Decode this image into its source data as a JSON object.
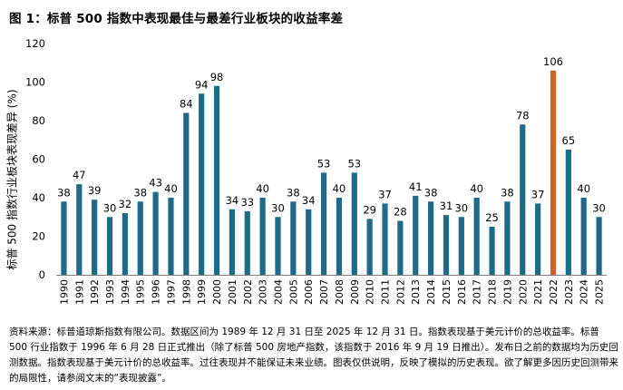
{
  "figure": {
    "title": "图 1：标普 500 指数中表现最佳与最差行业板块的收益率差",
    "source_note": "资料来源：标普道琼斯指数有限公司。数据区间为 1989 年 12 月 31 日至 2025 年 12 月 31 日。指数表现基于美元计价的总收益率。标普 500 行业指数于 1996 年 6 月 28 日正式推出（除了标普 500 房地产指数，该指数于 2016 年 9 月 19 日推出）。发布日之前的数据均为历史回测数据。指数表现基于美元计价的总收益率。过往表现并不能保证未来业绩。图表仅供说明，反映了模拟的历史表现。欲了解更多因历史回测带来的局限性，请参阅文末的“表现披露”。"
  },
  "colors": {
    "bar": "#1f6b87",
    "highlight": "#c9642c",
    "axis": "#7f7f7f"
  },
  "chart_data": {
    "type": "bar",
    "title": "图 1：标普 500 指数中表现最佳与最差行业板块的收益率差",
    "xlabel": "",
    "ylabel": "标普 500 指数行业板块表现差异 (%)",
    "ylim": [
      0,
      120
    ],
    "yticks": [
      0,
      20,
      40,
      60,
      80,
      100,
      120
    ],
    "grid": false,
    "legend": "none",
    "highlight_category": "2022",
    "categories": [
      "1990",
      "1991",
      "1992",
      "1993",
      "1994",
      "1995",
      "1996",
      "1997",
      "1998",
      "1999",
      "2000",
      "2001",
      "2002",
      "2003",
      "2004",
      "2005",
      "2006",
      "2007",
      "2008",
      "2009",
      "2010",
      "2011",
      "2012",
      "2013",
      "2014",
      "2015",
      "2016",
      "2017",
      "2018",
      "2019",
      "2020",
      "2021",
      "2022",
      "2023",
      "2024",
      "2025"
    ],
    "values": [
      38,
      47,
      39,
      30,
      32,
      38,
      43,
      40,
      84,
      94,
      98,
      34,
      33,
      40,
      30,
      38,
      34,
      53,
      40,
      53,
      29,
      37,
      28,
      41,
      38,
      31,
      30,
      40,
      25,
      38,
      78,
      37,
      106,
      65,
      40,
      30
    ]
  }
}
